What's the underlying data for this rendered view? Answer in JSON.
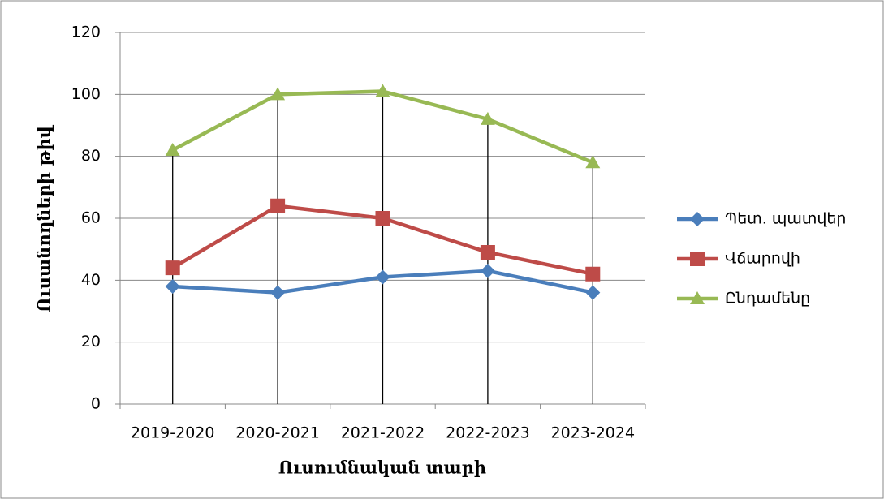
{
  "chart_data": {
    "type": "line",
    "x_label": "Ուսումնական տարի",
    "y_label": "Ուսանողների թիվ",
    "categories": [
      "2019-2020",
      "2020-2021",
      "2021-2022",
      "2022-2023",
      "2023-2024"
    ],
    "series": [
      {
        "name": "Պետ. պատվեր",
        "color": "#4a7ebb",
        "marker": "diamond",
        "values": [
          38,
          36,
          41,
          43,
          36
        ]
      },
      {
        "name": "Վճարովի",
        "color": "#be4b48",
        "marker": "square",
        "values": [
          44,
          64,
          60,
          49,
          42
        ]
      },
      {
        "name": "Ընդամենը",
        "color": "#98b954",
        "marker": "triangle",
        "values": [
          82,
          100,
          101,
          92,
          78
        ]
      }
    ],
    "ylim": [
      0,
      120
    ],
    "yticks": [
      0,
      20,
      40,
      60,
      80,
      100,
      120
    ],
    "grid": true,
    "drop_lines": true,
    "legend": "right"
  }
}
